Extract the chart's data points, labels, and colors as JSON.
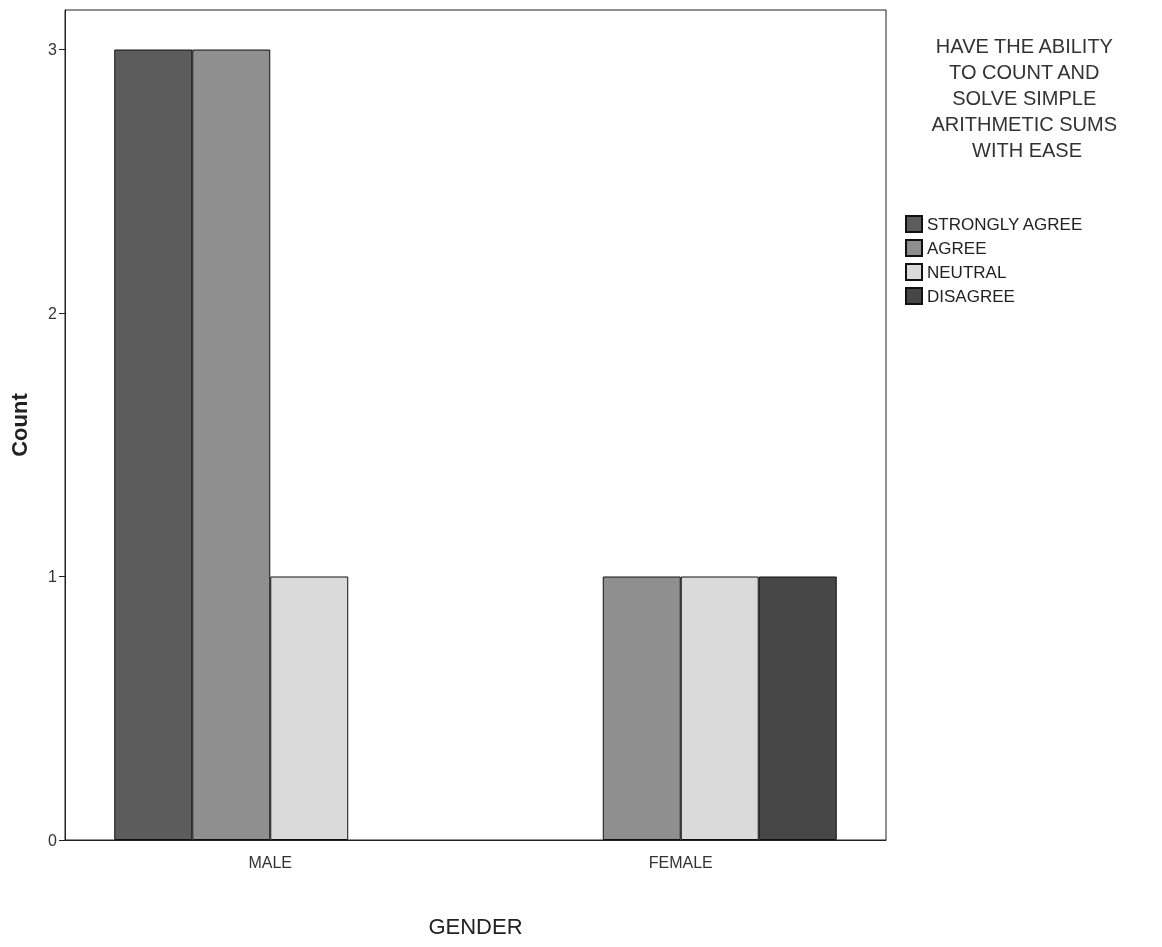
{
  "chart_data": {
    "type": "bar",
    "xlabel": "GENDER",
    "ylabel": "Count",
    "legend_title": "HAVE THE ABILITY TO COUNT AND SOLVE SIMPLE ARITHMETIC SUMS WITH EASE",
    "categories": [
      "MALE",
      "FEMALE"
    ],
    "series": [
      {
        "name": "STRONGLY AGREE",
        "color": "#5c5c5c",
        "values": [
          3,
          null
        ]
      },
      {
        "name": "AGREE",
        "color": "#8f8f8f",
        "values": [
          3,
          1
        ]
      },
      {
        "name": "NEUTRAL",
        "color": "#dadada",
        "values": [
          1,
          1
        ]
      },
      {
        "name": "DISAGREE",
        "color": "#474747",
        "values": [
          null,
          1
        ]
      }
    ],
    "ylim": [
      0,
      3.15
    ],
    "yticks": [
      0,
      1,
      2,
      3
    ],
    "grid": false,
    "legend": "top right"
  }
}
